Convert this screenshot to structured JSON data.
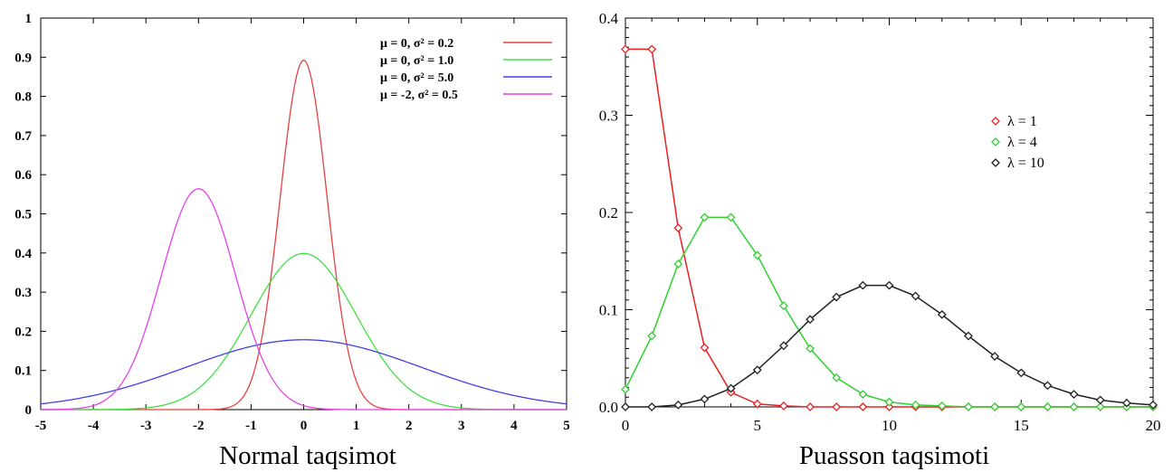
{
  "chart_data": [
    {
      "type": "line",
      "caption": "Normal taqsimot",
      "xlim": [
        -5,
        5
      ],
      "ylim": [
        0,
        1
      ],
      "xticks": [
        "-5",
        "-4",
        "-3",
        "-2",
        "-1",
        "0",
        "1",
        "2",
        "3",
        "4",
        "5"
      ],
      "yticks": [
        "0",
        "0.1",
        "0.2",
        "0.3",
        "0.4",
        "0.5",
        "0.6",
        "0.7",
        "0.8",
        "0.9",
        "1"
      ],
      "legend_position": "top-right",
      "series": [
        {
          "name": "μ = 0, σ² = 0.2",
          "mu": 0,
          "variance": 0.2,
          "color": "#e84040"
        },
        {
          "name": "μ = 0, σ² = 1.0",
          "mu": 0,
          "variance": 1.0,
          "color": "#40e040"
        },
        {
          "name": "μ = 0, σ² = 5.0",
          "mu": 0,
          "variance": 5.0,
          "color": "#4040e8"
        },
        {
          "name": "μ = -2, σ² = 0.5",
          "mu": -2,
          "variance": 0.5,
          "color": "#e840e8"
        }
      ]
    },
    {
      "type": "line",
      "caption": "Puasson taqsimoti",
      "xlim": [
        0,
        20
      ],
      "ylim": [
        0,
        0.4
      ],
      "xticks": [
        "0",
        "5",
        "10",
        "15",
        "20"
      ],
      "yticks": [
        "0.0",
        "0.1",
        "0.2",
        "0.3",
        "0.4"
      ],
      "legend_position": "top-right",
      "markers": "open-diamond",
      "series": [
        {
          "name": "λ = 1",
          "lambda": 1,
          "color": "#e82020",
          "x": [
            0,
            1,
            2,
            3,
            4,
            5,
            6,
            7,
            8,
            9,
            10,
            11,
            12,
            13,
            14,
            15,
            16,
            17,
            18,
            19,
            20
          ],
          "values": [
            0.368,
            0.368,
            0.184,
            0.061,
            0.015,
            0.003,
            0.001,
            0,
            0,
            0,
            0,
            0,
            0,
            0,
            0,
            0,
            0,
            0,
            0,
            0,
            0
          ]
        },
        {
          "name": "λ = 4",
          "lambda": 4,
          "color": "#30d030",
          "x": [
            0,
            1,
            2,
            3,
            4,
            5,
            6,
            7,
            8,
            9,
            10,
            11,
            12,
            13,
            14,
            15,
            16,
            17,
            18,
            19,
            20
          ],
          "values": [
            0.018,
            0.073,
            0.147,
            0.195,
            0.195,
            0.156,
            0.104,
            0.06,
            0.03,
            0.013,
            0.005,
            0.002,
            0.001,
            0,
            0,
            0,
            0,
            0,
            0,
            0,
            0
          ]
        },
        {
          "name": "λ = 10",
          "lambda": 10,
          "color": "#202020",
          "x": [
            0,
            1,
            2,
            3,
            4,
            5,
            6,
            7,
            8,
            9,
            10,
            11,
            12,
            13,
            14,
            15,
            16,
            17,
            18,
            19,
            20
          ],
          "values": [
            0,
            0,
            0.002,
            0.008,
            0.019,
            0.038,
            0.063,
            0.09,
            0.113,
            0.125,
            0.125,
            0.114,
            0.095,
            0.073,
            0.052,
            0.035,
            0.022,
            0.013,
            0.007,
            0.004,
            0.002
          ]
        }
      ]
    }
  ]
}
